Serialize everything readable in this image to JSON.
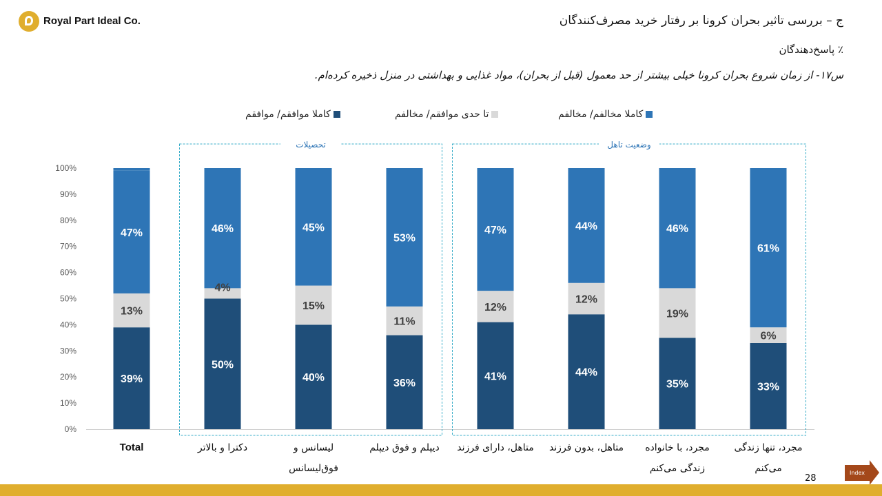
{
  "company": "Royal Part Ideal Co.",
  "title": "ج – بررسی تاثیر بحران کرونا بر رفتار خرید مصرف‌کنندگان",
  "subtitle": "٪ پاسخ‌دهندگان",
  "question": "س۱۷- از زمان شروع بحران کرونا خیلی بیشتر از حد معمول (قبل از بحران)، مواد غذایی و بهداشتی در منزل ذخیره کرده‌ام.",
  "page_number": "28",
  "index_label": "Index",
  "colors": {
    "agree": "#1f4e79",
    "neutral": "#d9d9d9",
    "disagree": "#2e75b6",
    "accent": "#e0ae2e",
    "group_border": "#3aaec9"
  },
  "chart_data": {
    "type": "bar",
    "stacked": true,
    "ylim": [
      0,
      100
    ],
    "yticks": [
      "0%",
      "10%",
      "20%",
      "30%",
      "40%",
      "50%",
      "60%",
      "70%",
      "80%",
      "90%",
      "100%"
    ],
    "categories": [
      "Total",
      "دکترا و بالاتر",
      "لیسانس و فوق‌لیسانس",
      "دیپلم و فوق دیپلم",
      "متاهل، دارای فرزند",
      "متاهل، بدون فرزند",
      "مجرد، با خانواده زندگی می‌کنم",
      "مجرد، تنها زندگی می‌کنم"
    ],
    "category_lines": [
      [
        "Total"
      ],
      [
        "دکترا و بالاتر"
      ],
      [
        "لیسانس و",
        "فوق‌لیسانس"
      ],
      [
        "دیپلم و فوق دیپلم"
      ],
      [
        "متاهل، دارای فرزند"
      ],
      [
        "متاهل، بدون فرزند"
      ],
      [
        "مجرد، با خانواده",
        "زندگی می‌کنم"
      ],
      [
        "مجرد، تنها زندگی",
        "می‌کنم"
      ]
    ],
    "series": [
      {
        "name": "کاملا موافقم/ موافقم",
        "values": [
          39,
          50,
          40,
          36,
          41,
          44,
          35,
          33
        ],
        "labels": [
          "39%",
          "50%",
          "40%",
          "36%",
          "41%",
          "44%",
          "35%",
          "33%"
        ]
      },
      {
        "name": "تا حدی موافقم/ مخالفم",
        "values": [
          13,
          4,
          15,
          11,
          12,
          12,
          19,
          6
        ],
        "labels": [
          "13%",
          "4%",
          "15%",
          "11%",
          "12%",
          "12%",
          "19%",
          "6%"
        ]
      },
      {
        "name": "کاملا مخالفم/ مخالفم",
        "values": [
          47,
          46,
          45,
          53,
          47,
          44,
          46,
          61
        ],
        "labels": [
          "47%",
          "46%",
          "45%",
          "53%",
          "47%",
          "44%",
          "46%",
          "61%"
        ]
      }
    ],
    "groups": [
      {
        "label": "تحصیلات",
        "start": 1,
        "end": 3
      },
      {
        "label": "وضعیت تاهل",
        "start": 4,
        "end": 7
      }
    ],
    "legend_position": "top",
    "grid": false
  }
}
